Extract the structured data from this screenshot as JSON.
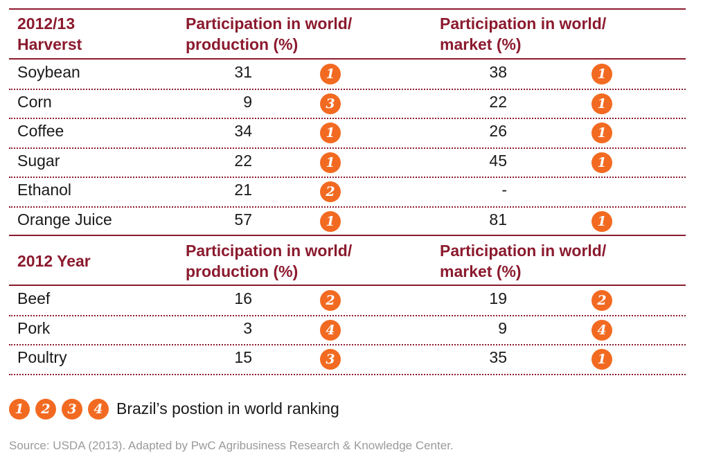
{
  "section1": {
    "header": "2012/13\nHarverst",
    "col_production": "Participation in world/\nproduction (%)",
    "col_market": "Participation in world/\nmarket (%)",
    "rows": [
      {
        "label": "Soybean",
        "production": "31",
        "production_rank": "1",
        "market": "38",
        "market_rank": "1"
      },
      {
        "label": "Corn",
        "production": "9",
        "production_rank": "3",
        "market": "22",
        "market_rank": "1"
      },
      {
        "label": "Coffee",
        "production": "34",
        "production_rank": "1",
        "market": "26",
        "market_rank": "1"
      },
      {
        "label": "Sugar",
        "production": "22",
        "production_rank": "1",
        "market": "45",
        "market_rank": "1"
      },
      {
        "label": "Ethanol",
        "production": "21",
        "production_rank": "2",
        "market": "-",
        "market_rank": ""
      },
      {
        "label": "Orange Juice",
        "production": "57",
        "production_rank": "1",
        "market": "81",
        "market_rank": "1"
      }
    ]
  },
  "section2": {
    "header": "2012 Year",
    "col_production": "Participation in world/\nproduction (%)",
    "col_market": "Participation in world/\nmarket (%)",
    "rows": [
      {
        "label": "Beef",
        "production": "16",
        "production_rank": "2",
        "market": "19",
        "market_rank": "2"
      },
      {
        "label": "Pork",
        "production": "3",
        "production_rank": "4",
        "market": "9",
        "market_rank": "4"
      },
      {
        "label": "Poultry",
        "production": "15",
        "production_rank": "3",
        "market": "35",
        "market_rank": "1"
      }
    ]
  },
  "legend": {
    "badges": [
      "1",
      "2",
      "3",
      "4"
    ],
    "text": "Brazil’s postion in world ranking"
  },
  "source": "Source: USDA (2013). Adapted by PwC Agribusiness Research & Knowledge Center.",
  "colors": {
    "accent": "#8b1a2e",
    "badge": "#f26a21",
    "source": "#9a9a9a"
  }
}
